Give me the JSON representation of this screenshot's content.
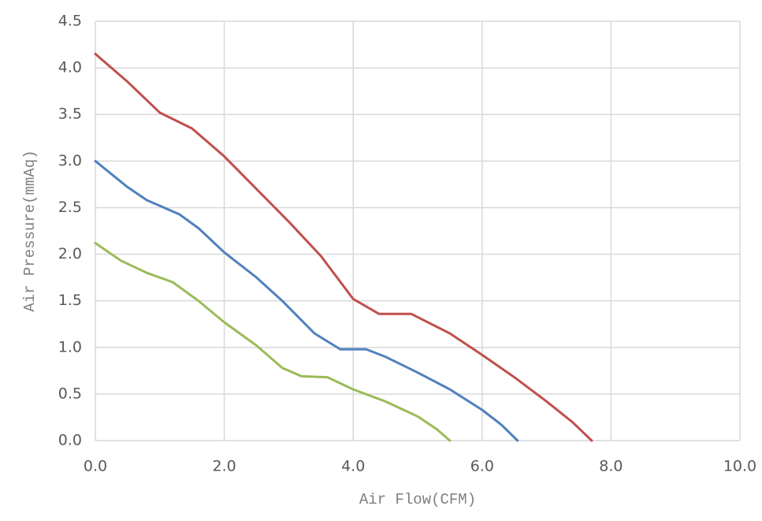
{
  "chart_data": {
    "type": "line",
    "x_label": "Air Flow(CFM)",
    "y_label": "Air Pressure(mmAq)",
    "xlim": [
      0,
      10
    ],
    "ylim": [
      0,
      4.5
    ],
    "xticks": [
      {
        "value": 0,
        "label": "0.0"
      },
      {
        "value": 2,
        "label": "2.0"
      },
      {
        "value": 4,
        "label": "4.0"
      },
      {
        "value": 6,
        "label": "6.0"
      },
      {
        "value": 8,
        "label": "8.0"
      },
      {
        "value": 10,
        "label": "10.0"
      }
    ],
    "yticks": [
      {
        "value": 0,
        "label": "0.0"
      },
      0.5,
      {
        "value": 1,
        "label": "1.0"
      },
      1.5,
      {
        "value": 2,
        "label": "2.0"
      },
      2.5,
      {
        "value": 3,
        "label": "3.0"
      },
      3.5,
      {
        "value": 4,
        "label": "4.0"
      },
      4.5
    ],
    "grid": true,
    "series": [
      {
        "color": "#c0504d",
        "x": [
          0,
          0.5,
          1.0,
          1.5,
          2.0,
          2.5,
          3.0,
          3.5,
          4.0,
          4.4,
          4.9,
          5.5,
          6.0,
          6.5,
          7.0,
          7.4,
          7.7
        ],
        "values": [
          4.15,
          3.85,
          3.52,
          3.35,
          3.05,
          2.7,
          2.35,
          1.98,
          1.52,
          1.36,
          1.36,
          1.15,
          0.92,
          0.68,
          0.42,
          0.2,
          0
        ]
      },
      {
        "color": "#4f81bd",
        "x": [
          0,
          0.5,
          0.8,
          1.3,
          1.6,
          2.0,
          2.5,
          2.9,
          3.4,
          3.8,
          4.2,
          4.5,
          5.0,
          5.5,
          6.0,
          6.3,
          6.55
        ],
        "values": [
          3.0,
          2.72,
          2.58,
          2.43,
          2.28,
          2.02,
          1.75,
          1.5,
          1.15,
          0.98,
          0.98,
          0.9,
          0.73,
          0.55,
          0.33,
          0.17,
          0
        ]
      },
      {
        "color": "#9bbb59",
        "x": [
          0,
          0.4,
          0.8,
          1.2,
          1.6,
          2.0,
          2.5,
          2.9,
          3.2,
          3.6,
          4.0,
          4.5,
          5.0,
          5.3,
          5.5
        ],
        "values": [
          2.12,
          1.93,
          1.8,
          1.7,
          1.5,
          1.27,
          1.02,
          0.78,
          0.69,
          0.68,
          0.55,
          0.42,
          0.26,
          0.12,
          0
        ]
      }
    ]
  }
}
